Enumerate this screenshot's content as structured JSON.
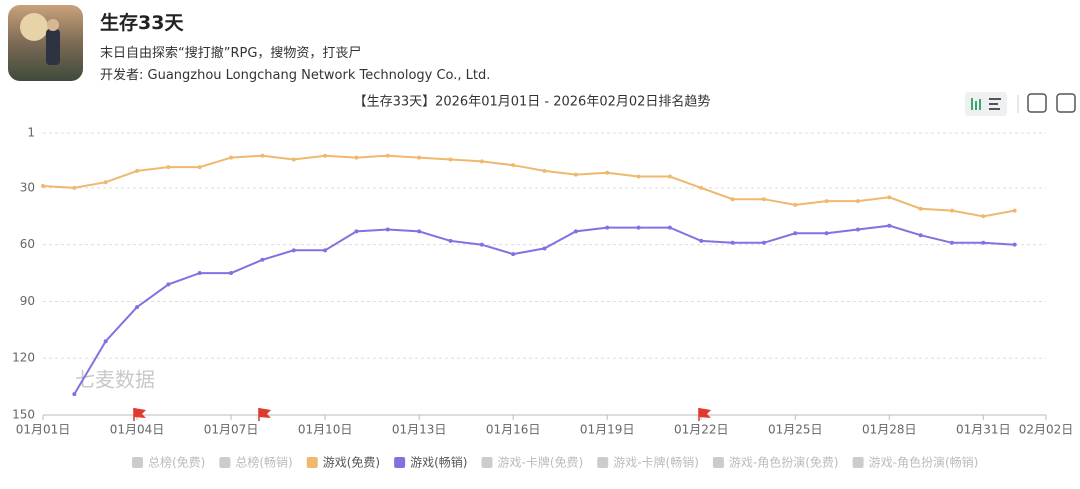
{
  "header": {
    "app_name": "生存33天",
    "description": "末日自由探索“搜打撤”RPG，搜物资，打丧尸",
    "developer": "开发者: Guangzhou Longchang Network Technology Co., Ltd."
  },
  "chart_data": {
    "type": "line",
    "title": "【生存33天】2026年01月01日 - 2026年02月02日排名趋势",
    "watermark": "七麦数据",
    "categories": [
      "01月01日",
      null,
      null,
      "01月04日",
      null,
      null,
      "01月07日",
      null,
      null,
      "01月10日",
      null,
      null,
      "01月13日",
      null,
      null,
      "01月16日",
      null,
      null,
      "01月19日",
      null,
      null,
      "01月22日",
      null,
      null,
      "01月25日",
      null,
      null,
      "01月28日",
      null,
      null,
      "01月31日",
      null,
      "02月02日"
    ],
    "ylim": [
      1,
      150
    ],
    "y_inverted": true,
    "yticks": [
      1,
      30,
      60,
      90,
      120,
      150
    ],
    "grid": true,
    "series": [
      {
        "name": "总榜(免费)",
        "color": "#cccccc",
        "visible": false,
        "values": [
          null,
          null,
          null,
          null,
          null,
          null,
          null,
          null,
          null,
          null,
          null,
          null,
          null,
          null,
          null,
          null,
          null,
          null,
          null,
          null,
          null,
          null,
          null,
          null,
          null,
          null,
          null,
          null,
          null,
          null,
          null,
          null,
          null
        ]
      },
      {
        "name": "总榜(畅销)",
        "color": "#cccccc",
        "visible": false,
        "values": [
          null,
          null,
          null,
          null,
          null,
          null,
          null,
          null,
          null,
          null,
          null,
          null,
          null,
          null,
          null,
          null,
          null,
          null,
          null,
          null,
          null,
          null,
          null,
          null,
          null,
          null,
          null,
          null,
          null,
          null,
          null,
          null,
          null
        ]
      },
      {
        "name": "游戏(免费)",
        "color": "#f0b86e",
        "visible": true,
        "values": [
          29,
          30,
          27,
          21,
          19,
          19,
          14,
          13,
          15,
          13,
          14,
          13,
          14,
          15,
          16,
          18,
          21,
          23,
          22,
          24,
          24,
          30,
          36,
          36,
          39,
          37,
          37,
          35,
          41,
          42,
          45,
          42,
          null
        ]
      },
      {
        "name": "游戏(畅销)",
        "color": "#8470e0",
        "visible": true,
        "values": [
          null,
          139,
          111,
          93,
          81,
          75,
          75,
          68,
          63,
          63,
          53,
          52,
          53,
          58,
          60,
          65,
          62,
          53,
          51,
          51,
          51,
          58,
          59,
          59,
          54,
          54,
          52,
          50,
          55,
          59,
          59,
          60,
          null
        ]
      },
      {
        "name": "游戏-卡牌(免费)",
        "color": "#cccccc",
        "visible": false,
        "values": [
          null,
          null,
          null,
          null,
          null,
          null,
          null,
          null,
          null,
          null,
          null,
          null,
          null,
          null,
          null,
          null,
          null,
          null,
          null,
          null,
          null,
          null,
          null,
          null,
          null,
          null,
          null,
          null,
          null,
          null,
          null,
          null,
          null
        ]
      },
      {
        "name": "游戏-卡牌(畅销)",
        "color": "#cccccc",
        "visible": false,
        "values": [
          null,
          null,
          null,
          null,
          null,
          null,
          null,
          null,
          null,
          null,
          null,
          null,
          null,
          null,
          null,
          null,
          null,
          null,
          null,
          null,
          null,
          null,
          null,
          null,
          null,
          null,
          null,
          null,
          null,
          null,
          null,
          null,
          null
        ]
      },
      {
        "name": "游戏-角色扮演(免费)",
        "color": "#cccccc",
        "visible": false,
        "values": [
          null,
          null,
          null,
          null,
          null,
          null,
          null,
          null,
          null,
          null,
          null,
          null,
          null,
          null,
          null,
          null,
          null,
          null,
          null,
          null,
          null,
          null,
          null,
          null,
          null,
          null,
          null,
          null,
          null,
          null,
          null,
          null,
          null
        ]
      },
      {
        "name": "游戏-角色扮演(畅销)",
        "color": "#cccccc",
        "visible": false,
        "values": [
          null,
          null,
          null,
          null,
          null,
          null,
          null,
          null,
          null,
          null,
          null,
          null,
          null,
          null,
          null,
          null,
          null,
          null,
          null,
          null,
          null,
          null,
          null,
          null,
          null,
          null,
          null,
          null,
          null,
          null,
          null,
          null,
          null
        ]
      }
    ]
  }
}
